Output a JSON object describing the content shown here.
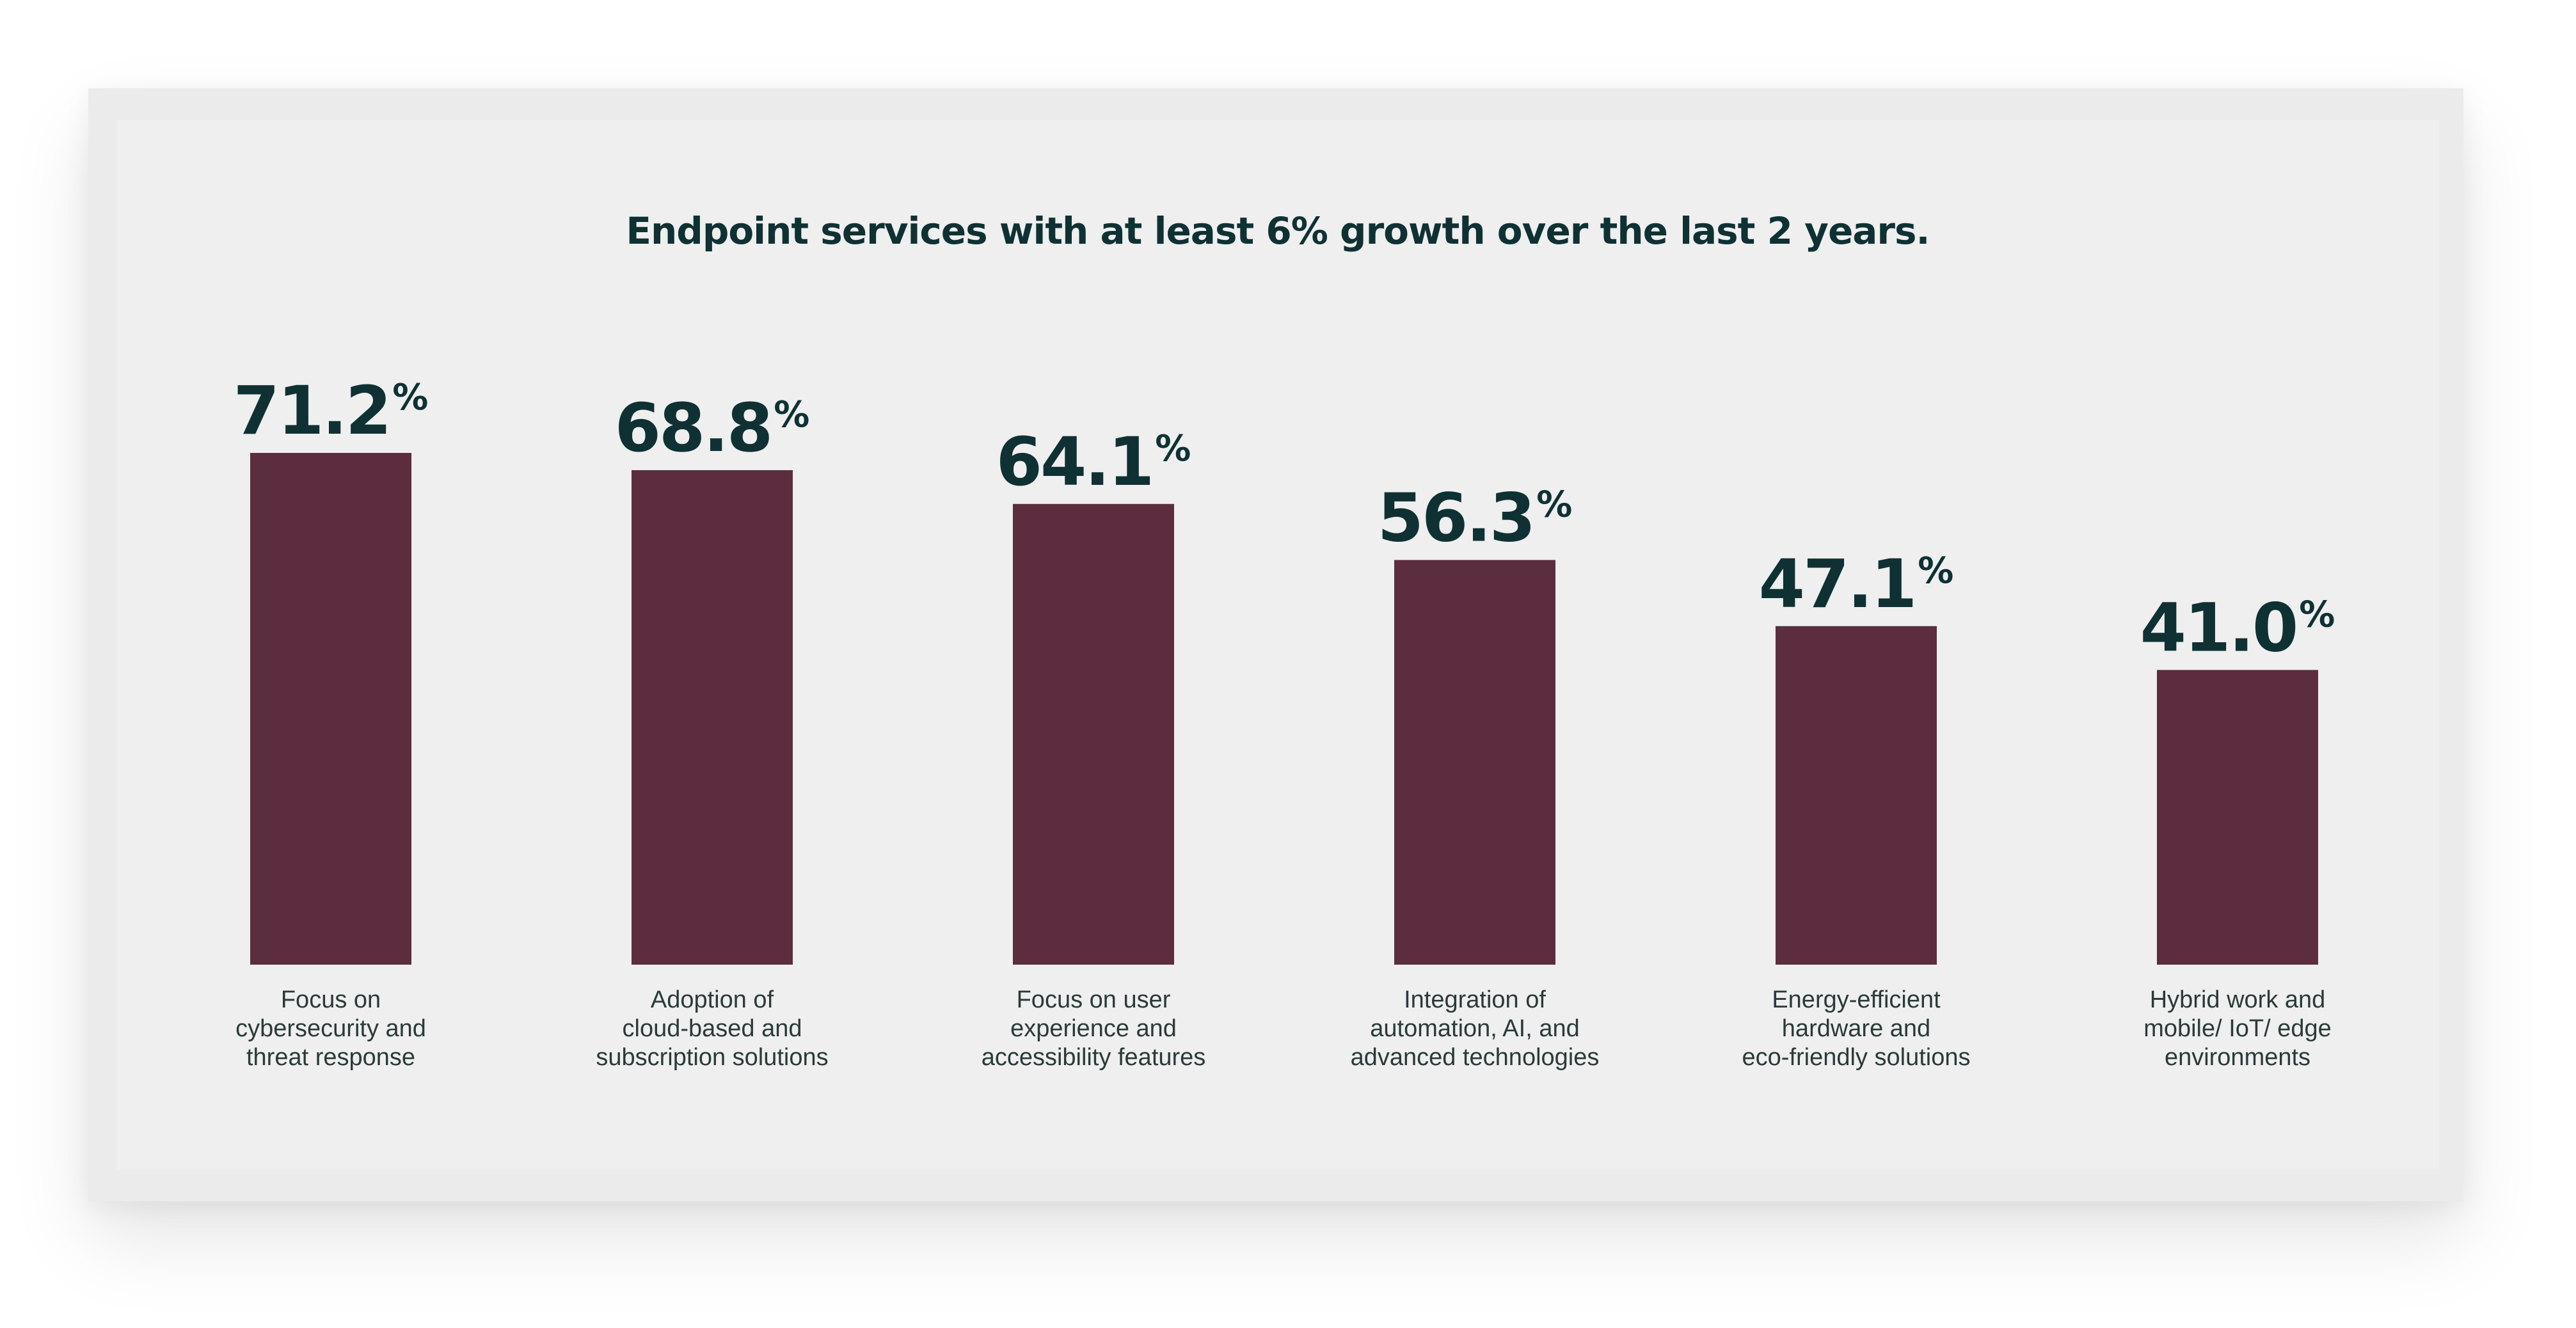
{
  "chart_data": {
    "type": "bar",
    "title": "Endpoint services with at least 6% growth over the last 2 years.",
    "categories": [
      [
        "Focus on",
        "cybersecurity and",
        "threat response"
      ],
      [
        "Adoption of",
        "cloud-based and",
        "subscription solutions"
      ],
      [
        "Focus on user",
        "experience and",
        "accessibility features"
      ],
      [
        "Integration of",
        "automation, AI, and",
        "advanced technologies"
      ],
      [
        "Energy-efficient",
        "hardware and",
        "eco-friendly solutions"
      ],
      [
        "Hybrid work and",
        "mobile/ IoT/ edge",
        "environments"
      ]
    ],
    "values": [
      71.2,
      68.8,
      64.1,
      56.3,
      47.1,
      41.0
    ],
    "value_labels": [
      "71.2",
      "68.8",
      "64.1",
      "56.3",
      "47.1",
      "41.0"
    ],
    "unit": "%",
    "ylim": [
      0,
      71.2
    ],
    "xlabel": "",
    "ylabel": "",
    "grid": false,
    "bar_color": "#5b2d3f",
    "label_color": "#0f3133",
    "background_color": "#efefef"
  }
}
